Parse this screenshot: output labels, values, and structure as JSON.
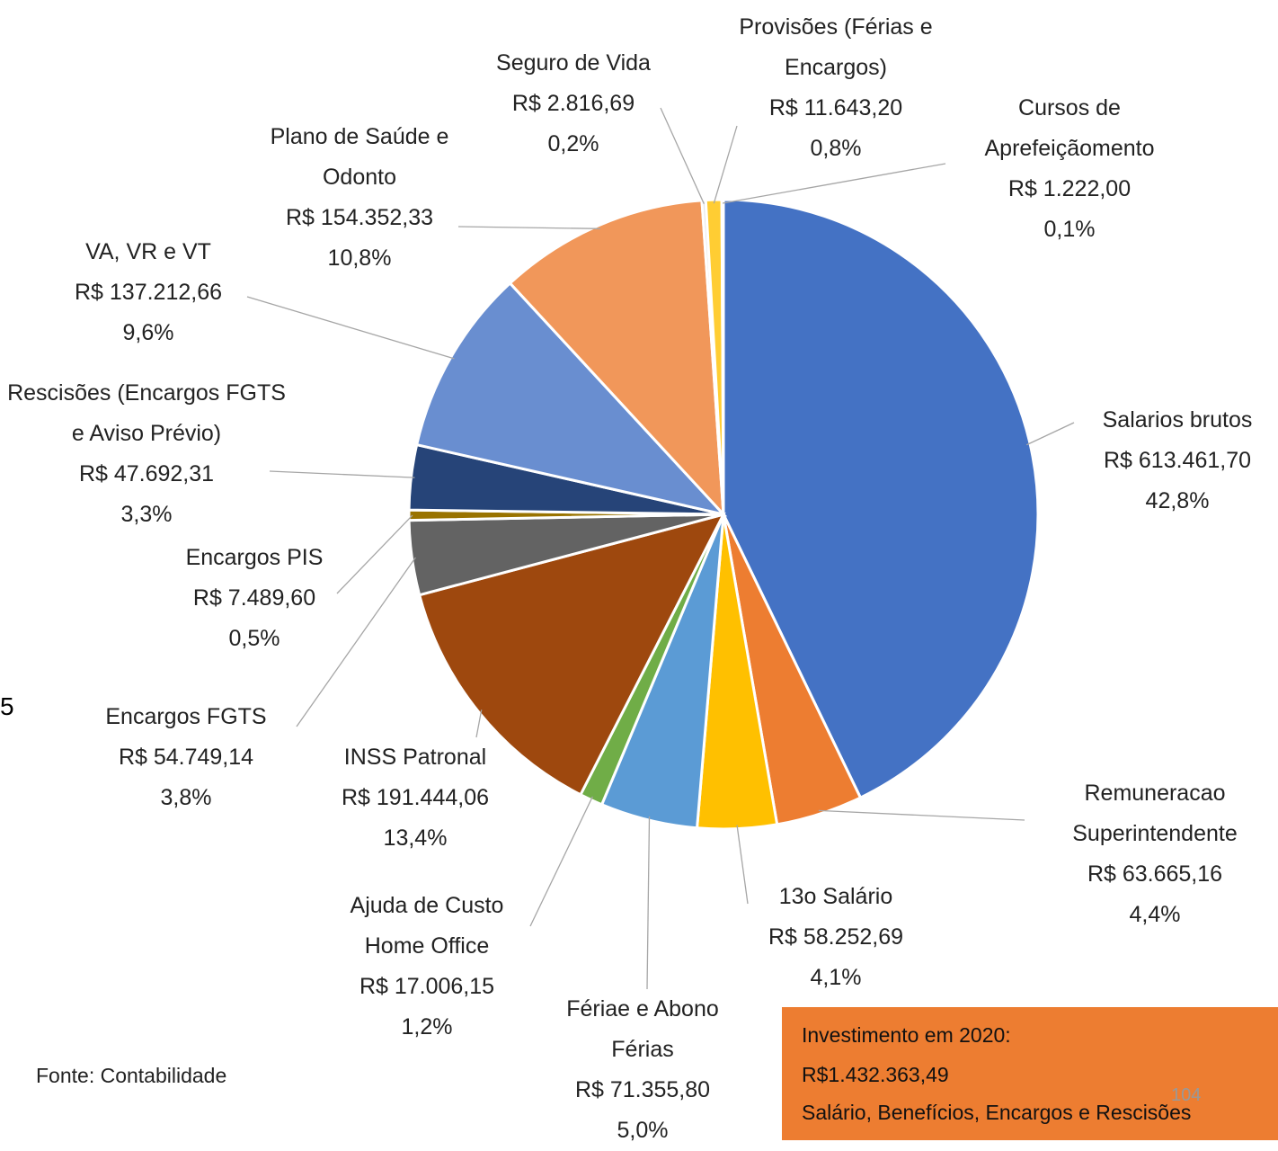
{
  "chart_data": {
    "type": "pie",
    "categories": [
      "Salarios brutos",
      "Remuneracao Superintendente",
      "13o Salário",
      "Fériae e Abono Férias",
      "Ajuda de Custo Home Office",
      "INSS Patronal",
      "Encargos FGTS",
      "Encargos PIS",
      "Rescisões (Encargos FGTS e Aviso Prévio)",
      "VA, VR e VT",
      "Plano de Saúde e Odonto",
      "Seguro de Vida",
      "Provisões (Férias e Encargos)",
      "Cursos de Aprefeiçãomento"
    ],
    "values": [
      613461.7,
      63665.16,
      58252.69,
      71355.8,
      17006.15,
      191444.06,
      54749.14,
      7489.6,
      47692.31,
      137212.66,
      154352.33,
      2816.69,
      11643.2,
      1222.0
    ],
    "value_labels": [
      "R$ 613.461,70",
      "R$ 63.665,16",
      "R$ 58.252,69",
      "R$ 71.355,80",
      "R$ 17.006,15",
      "R$ 191.444,06",
      "R$ 54.749,14",
      "R$ 7.489,60",
      "R$ 47.692,31",
      "R$ 137.212,66",
      "R$ 154.352,33",
      "R$ 2.816,69",
      "R$ 11.643,20",
      "R$ 1.222,00"
    ],
    "percent_labels": [
      "42,8%",
      "4,4%",
      "4,1%",
      "5,0%",
      "1,2%",
      "13,4%",
      "3,8%",
      "0,5%",
      "3,3%",
      "9,6%",
      "10,8%",
      "0,2%",
      "0,8%",
      "0,1%"
    ],
    "colors": [
      "#4472c4",
      "#ed7d31",
      "#ffc000",
      "#5b9bd5",
      "#70ad47",
      "#9e480e",
      "#636363",
      "#997300",
      "#264478",
      "#698ed0",
      "#f1975a",
      "#e4e4e4",
      "#ffcd33",
      "#4472c4"
    ],
    "source": "Fonte: Contabilidade",
    "summary_box": [
      "Investimento em 2020:",
      "R$1.432.363,49",
      "Salário, Benefícios, Encargos e Rescisões"
    ],
    "page_number": "104",
    "side_text": "5"
  }
}
